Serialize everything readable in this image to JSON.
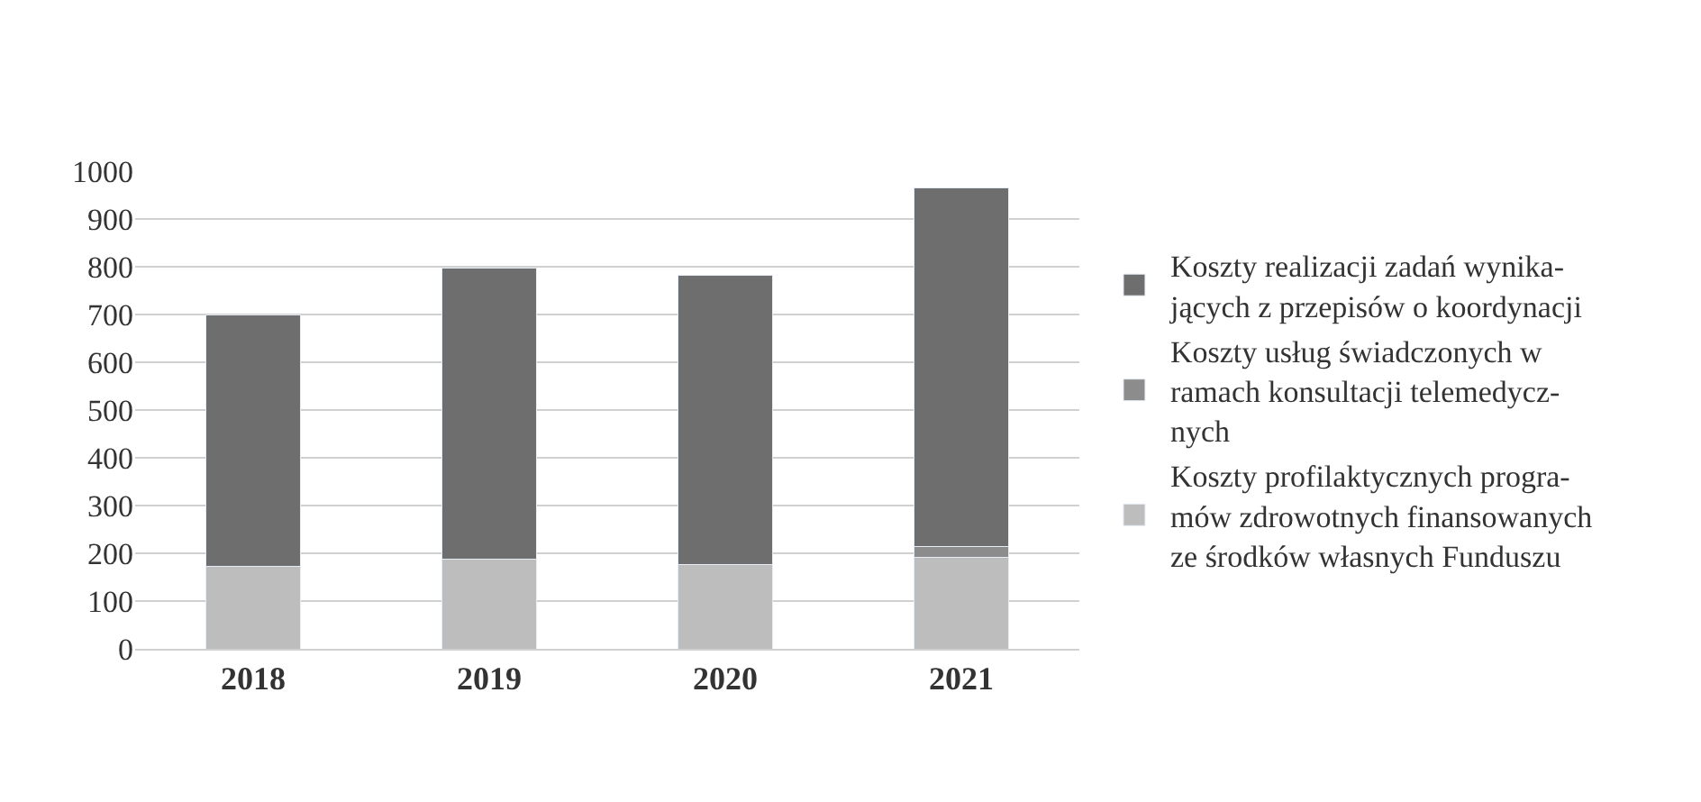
{
  "chart_data": {
    "type": "bar",
    "stacked": true,
    "categories": [
      "2018",
      "2019",
      "2020",
      "2021"
    ],
    "series": [
      {
        "name": "Koszty profilaktycznych progra-\nmów zdrowotnych finansowanych\nze środków własnych Funduszu",
        "color": "#bdbdbd",
        "values": [
          173,
          187,
          177,
          192
        ]
      },
      {
        "name": "Koszty usług świadczonych w\nramach konsultacji telemedycz-\nnych",
        "color": "#8c8c8c",
        "values": [
          0,
          0,
          0,
          22
        ]
      },
      {
        "name": "Koszty realizacji zadań wynika-\njących z przepisów o koordynacji",
        "color": "#6e6e6e",
        "values": [
          527,
          610,
          606,
          751
        ]
      }
    ],
    "ylim": [
      0,
      1000
    ],
    "yticks": [
      0,
      100,
      200,
      300,
      400,
      500,
      600,
      700,
      800,
      900,
      1000
    ],
    "grid": "y",
    "legend": "right"
  }
}
